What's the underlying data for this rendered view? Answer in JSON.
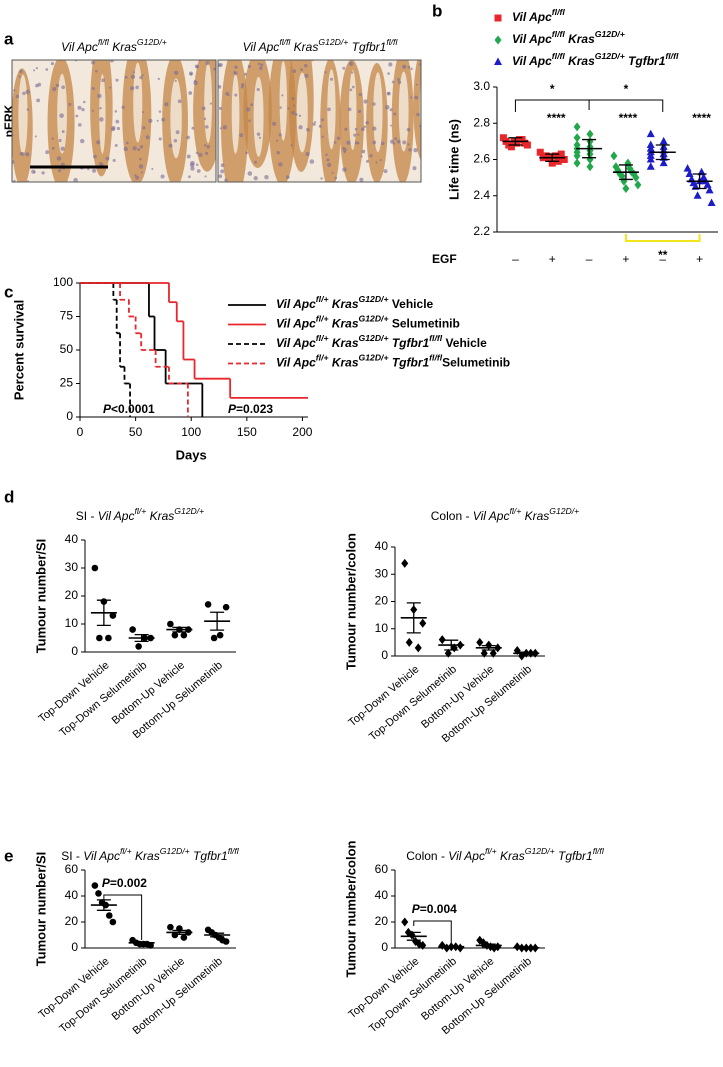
{
  "panel_a": {
    "label": "a",
    "stain": "pERK",
    "captions": [
      [
        {
          "text": "Vil Apc",
          "style": "italic"
        },
        {
          "text": "fl/fl",
          "style": "sup"
        },
        {
          "text": " Kras",
          "style": "italic"
        },
        {
          "text": "G12D/+",
          "style": "sup"
        }
      ],
      [
        {
          "text": "Vil Apc",
          "style": "italic"
        },
        {
          "text": "fl/fl",
          "style": "sup"
        },
        {
          "text": " Kras",
          "style": "italic"
        },
        {
          "text": "G12D/+",
          "style": "sup"
        },
        {
          "text": " Tgfbr1",
          "style": "italic"
        },
        {
          "text": "fl/fl",
          "style": "sup"
        }
      ]
    ]
  },
  "chart_data": [
    {
      "type": "dotplot",
      "panel": "b",
      "ylabel": "Life time (ns)",
      "xlabel": "EGF",
      "categories": [
        "–",
        "+",
        "–",
        "+",
        "–",
        "+"
      ],
      "ylim": [
        2.2,
        3.0
      ],
      "yticks": [
        2.2,
        2.4,
        2.6,
        2.8,
        {
          "value": 3.0,
          "label": "3.0"
        }
      ],
      "series": [
        {
          "name": [
            {
              "text": "Vil Apc",
              "style": "italic"
            },
            {
              "text": "fl/fl",
              "style": "sup"
            }
          ],
          "color": "#e8262b",
          "marker": "square",
          "values": [
            [
              2.72,
              2.71,
              2.7,
              2.7,
              2.69,
              2.69,
              2.68,
              2.68,
              2.71,
              2.67
            ],
            [
              2.64,
              2.63,
              2.62,
              2.61,
              2.61,
              2.6,
              2.59,
              2.58,
              2.62
            ],
            null,
            null,
            null,
            null
          ],
          "means": [
            2.7,
            2.61,
            null,
            null,
            null,
            null
          ],
          "errors": [
            0.02,
            0.02,
            null,
            null,
            null,
            null
          ]
        },
        {
          "name": [
            {
              "text": "Vil Apc",
              "style": "italic"
            },
            {
              "text": "fl/fl",
              "style": "sup"
            },
            {
              "text": " Kras",
              "style": "italic"
            },
            {
              "text": "G12D/+",
              "style": "sup"
            }
          ],
          "color": "#22a84a",
          "marker": "diamond",
          "values": [
            null,
            null,
            [
              2.78,
              2.74,
              2.72,
              2.7,
              2.68,
              2.67,
              2.66,
              2.65,
              2.64,
              2.63,
              2.62,
              2.6,
              2.58,
              2.56
            ],
            [
              2.62,
              2.58,
              2.56,
              2.55,
              2.54,
              2.53,
              2.52,
              2.52,
              2.51,
              2.5,
              2.48,
              2.46,
              2.44
            ],
            null,
            null
          ],
          "means": [
            null,
            null,
            2.66,
            2.53,
            null,
            null
          ],
          "errors": [
            null,
            null,
            0.05,
            0.04,
            null,
            null
          ]
        },
        {
          "name": [
            {
              "text": "Vil Apc",
              "style": "italic"
            },
            {
              "text": "fl/fl",
              "style": "sup"
            },
            {
              "text": " Kras",
              "style": "italic"
            },
            {
              "text": "G12D/+",
              "style": "sup"
            },
            {
              "text": " Tgfbr1",
              "style": "italic"
            },
            {
              "text": "fl/fl",
              "style": "sup"
            }
          ],
          "color": "#1c1cc8",
          "marker": "triangle",
          "values": [
            null,
            null,
            null,
            null,
            [
              2.74,
              2.7,
              2.68,
              2.67,
              2.66,
              2.65,
              2.64,
              2.63,
              2.62,
              2.61,
              2.6,
              2.58,
              2.56,
              2.63
            ],
            [
              2.55,
              2.53,
              2.52,
              2.5,
              2.49,
              2.48,
              2.47,
              2.46,
              2.45,
              2.43,
              2.4,
              2.36,
              2.48
            ]
          ],
          "means": [
            null,
            null,
            null,
            null,
            2.64,
            2.48
          ],
          "errors": [
            null,
            null,
            null,
            null,
            0.04,
            0.04
          ]
        }
      ],
      "annotations": [
        {
          "text": "*"
        },
        {
          "text": "*"
        },
        {
          "text": "****",
          "color": "#e8262b"
        },
        {
          "text": "****",
          "color": "#22a84a"
        },
        {
          "text": "****",
          "color": "#1c1cc8"
        },
        {
          "text": "**"
        }
      ]
    },
    {
      "type": "survival",
      "panel": "c",
      "xlabel": "Days",
      "ylabel": "Percent survival",
      "xlim": [
        0,
        205
      ],
      "ylim": [
        0,
        100
      ],
      "xticks": [
        0,
        50,
        100,
        150,
        200
      ],
      "yticks": [
        0,
        25,
        50,
        75,
        100
      ],
      "series": [
        {
          "name": [
            {
              "text": "Vil Apc",
              "style": "italic"
            },
            {
              "text": "fl/+",
              "style": "sup"
            },
            {
              "text": " Kras",
              "style": "italic"
            },
            {
              "text": "G12D/+",
              "style": "sup"
            },
            {
              "text": " Vehicle",
              "style": "plain"
            }
          ],
          "color": "#000000",
          "dash": false,
          "x": [
            0,
            62,
            67,
            77,
            110
          ],
          "values": [
            100,
            75,
            50,
            25,
            0
          ]
        },
        {
          "name": [
            {
              "text": "Vil Apc",
              "style": "italic"
            },
            {
              "text": "fl/+",
              "style": "sup"
            },
            {
              "text": " Kras",
              "style": "italic"
            },
            {
              "text": "G12D/+",
              "style": "sup"
            },
            {
              "text": " Selumetinib",
              "style": "plain"
            }
          ],
          "color": "#e8262b",
          "dash": false,
          "x": [
            0,
            80,
            87,
            93,
            103,
            135,
            205
          ],
          "values": [
            100,
            85.7,
            71.4,
            42.9,
            28.6,
            14.3,
            14.3
          ]
        },
        {
          "name": [
            {
              "text": "Vil Apc",
              "style": "italic"
            },
            {
              "text": "fl/+",
              "style": "sup"
            },
            {
              "text": " Kras",
              "style": "italic"
            },
            {
              "text": "G12D/+",
              "style": "sup"
            },
            {
              "text": " Tgfbr1",
              "style": "italic"
            },
            {
              "text": "fl/fl",
              "style": "sup"
            },
            {
              "text": " Vehicle",
              "style": "plain"
            }
          ],
          "color": "#000000",
          "dash": true,
          "x": [
            0,
            30,
            33,
            36,
            40,
            45
          ],
          "values": [
            100,
            87.5,
            62.5,
            37.5,
            25,
            0
          ]
        },
        {
          "name": [
            {
              "text": "Vil Apc",
              "style": "italic"
            },
            {
              "text": "fl/+",
              "style": "sup"
            },
            {
              "text": " Kras",
              "style": "italic"
            },
            {
              "text": "G12D/+",
              "style": "sup"
            },
            {
              "text": " Tgfbr1",
              "style": "italic"
            },
            {
              "text": "fl/fl",
              "style": "sup"
            },
            {
              "text": "Selumetinib",
              "style": "plain"
            }
          ],
          "color": "#e8262b",
          "dash": true,
          "x": [
            0,
            36,
            44,
            50,
            55,
            68,
            80,
            97
          ],
          "values": [
            100,
            87.5,
            75,
            62.5,
            50,
            37.5,
            25,
            0
          ]
        }
      ],
      "annotations": [
        {
          "text": [
            {
              "text": "P",
              "style": "italic"
            },
            {
              "text": "<0.0001",
              "style": "plain"
            }
          ]
        },
        {
          "text": [
            {
              "text": "P",
              "style": "italic"
            },
            {
              "text": "=0.023",
              "style": "plain"
            }
          ]
        }
      ]
    },
    {
      "type": "dotplot",
      "panel": "d",
      "title": [
        {
          "text": "SI - ",
          "style": "plain"
        },
        {
          "text": "Vil Apc",
          "style": "italic"
        },
        {
          "text": "fl/+",
          "style": "sup"
        },
        {
          "text": " Kras",
          "style": "italic"
        },
        {
          "text": "G12D/+",
          "style": "sup"
        }
      ],
      "ylabel": "Tumour number/SI",
      "categories": [
        "Top-Down Vehicle",
        "Top-Down Selumetinib",
        "Bottom-Up Vehicle",
        "Bottom-Up Selumetinib"
      ],
      "ylim": [
        0,
        40
      ],
      "yticks": [
        0,
        10,
        20,
        30,
        40
      ],
      "marker": "circle",
      "color": "#000000",
      "values": [
        [
          30,
          18,
          13,
          5,
          5
        ],
        [
          8,
          5,
          5,
          2
        ],
        [
          10,
          8,
          8,
          6,
          6
        ],
        [
          17,
          16,
          6,
          5
        ]
      ],
      "means": [
        14,
        5,
        8,
        11
      ],
      "errors": [
        4.5,
        1.2,
        0.8,
        3.2
      ]
    },
    {
      "type": "dotplot",
      "title": [
        {
          "text": "Colon - ",
          "style": "plain"
        },
        {
          "text": "Vil Apc",
          "style": "italic"
        },
        {
          "text": "fl/+",
          "style": "sup"
        },
        {
          "text": " Kras",
          "style": "italic"
        },
        {
          "text": "G12D/+",
          "style": "sup"
        }
      ],
      "ylabel": "Tumour number/colon",
      "categories": [
        "Top-Down Vehicle",
        "Top-Down Selumetinib",
        "Bottom-Up Vehicle",
        "Bottom-Up Selumetinib"
      ],
      "ylim": [
        0,
        40
      ],
      "yticks": [
        0,
        10,
        20,
        30,
        40
      ],
      "marker": "diamond",
      "color": "#000000",
      "values": [
        [
          34,
          17,
          12,
          5,
          3
        ],
        [
          6,
          4,
          3,
          1
        ],
        [
          5,
          4,
          3,
          1,
          1
        ],
        [
          2,
          1,
          1,
          0,
          1
        ]
      ],
      "means": [
        14,
        4,
        3,
        1
      ],
      "errors": [
        5.5,
        1.8,
        0.8,
        0.4
      ]
    },
    {
      "type": "dotplot",
      "panel": "e",
      "title": [
        {
          "text": "SI - ",
          "style": "plain"
        },
        {
          "text": "Vil Apc",
          "style": "italic"
        },
        {
          "text": "fl/+",
          "style": "sup"
        },
        {
          "text": " Kras",
          "style": "italic"
        },
        {
          "text": "G12D/+",
          "style": "sup"
        },
        {
          "text": " Tgfbr1",
          "style": "italic"
        },
        {
          "text": "fl/fl",
          "style": "sup"
        }
      ],
      "ylabel": "Tumour number/SI",
      "categories": [
        "Top-Down Vehicle",
        "Top-Down Selumetinib",
        "Bottom-Up Vehicle",
        "Bottom-Up Selumetinib"
      ],
      "ylim": [
        0,
        60
      ],
      "yticks": [
        0,
        20,
        40,
        60
      ],
      "marker": "circle",
      "color": "#000000",
      "values": [
        [
          48,
          42,
          35,
          33,
          25,
          20
        ],
        [
          6,
          4,
          3,
          3,
          3,
          2
        ],
        [
          16,
          15,
          12,
          10,
          8
        ],
        [
          14,
          12,
          10,
          8,
          6,
          5
        ]
      ],
      "means": [
        33,
        4,
        12,
        10
      ],
      "errors": [
        4,
        0.6,
        1.5,
        1.4
      ],
      "annotations": [
        {
          "text": [
            {
              "text": "P",
              "style": "italic"
            },
            {
              "text": "=0.002",
              "style": "plain"
            }
          ]
        }
      ]
    },
    {
      "type": "dotplot",
      "title": [
        {
          "text": "Colon - ",
          "style": "plain"
        },
        {
          "text": "Vil Apc",
          "style": "italic"
        },
        {
          "text": "fl/+",
          "style": "sup"
        },
        {
          "text": " Kras",
          "style": "italic"
        },
        {
          "text": "G12D/+",
          "style": "sup"
        },
        {
          "text": " Tgfbr1",
          "style": "italic"
        },
        {
          "text": "fl/fl",
          "style": "sup"
        }
      ],
      "ylabel": "Tumour number/colon",
      "categories": [
        "Top-Down Vehicle",
        "Top-Down Selumetinib",
        "Bottom-Up Vehicle",
        "Bottom-Up Selumetinib"
      ],
      "ylim": [
        0,
        60
      ],
      "yticks": [
        0,
        20,
        40,
        60
      ],
      "marker": "diamond",
      "color": "#000000",
      "values": [
        [
          20,
          12,
          10,
          5,
          3,
          2
        ],
        [
          2,
          1,
          0,
          0,
          1
        ],
        [
          6,
          4,
          2,
          1,
          0,
          1
        ],
        [
          1,
          0,
          0,
          0,
          0
        ]
      ],
      "means": [
        9,
        1,
        2,
        0.2
      ],
      "errors": [
        3,
        0.4,
        1,
        0.2
      ],
      "annotations": [
        {
          "text": [
            {
              "text": "P",
              "style": "italic"
            },
            {
              "text": "=0.004",
              "style": "plain"
            }
          ]
        }
      ]
    }
  ]
}
